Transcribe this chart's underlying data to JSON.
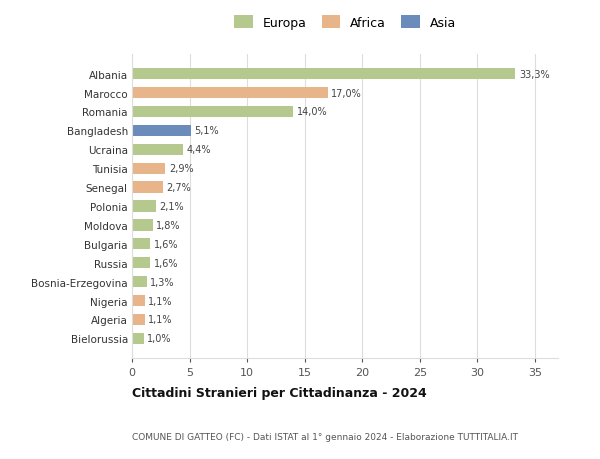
{
  "countries": [
    "Albania",
    "Marocco",
    "Romania",
    "Bangladesh",
    "Ucraina",
    "Tunisia",
    "Senegal",
    "Polonia",
    "Moldova",
    "Bulgaria",
    "Russia",
    "Bosnia-Erzegovina",
    "Nigeria",
    "Algeria",
    "Bielorussia"
  ],
  "values": [
    33.3,
    17.0,
    14.0,
    5.1,
    4.4,
    2.9,
    2.7,
    2.1,
    1.8,
    1.6,
    1.6,
    1.3,
    1.1,
    1.1,
    1.0
  ],
  "labels": [
    "33,3%",
    "17,0%",
    "14,0%",
    "5,1%",
    "4,4%",
    "2,9%",
    "2,7%",
    "2,1%",
    "1,8%",
    "1,6%",
    "1,6%",
    "1,3%",
    "1,1%",
    "1,1%",
    "1,0%"
  ],
  "colors": [
    "#b5c98e",
    "#e8b48a",
    "#b5c98e",
    "#6b8cba",
    "#b5c98e",
    "#e8b48a",
    "#e8b48a",
    "#b5c98e",
    "#b5c98e",
    "#b5c98e",
    "#b5c98e",
    "#b5c98e",
    "#e8b48a",
    "#e8b48a",
    "#b5c98e"
  ],
  "legend_labels": [
    "Europa",
    "Africa",
    "Asia"
  ],
  "legend_colors": [
    "#b5c98e",
    "#e8b48a",
    "#6b8cba"
  ],
  "title1": "Cittadini Stranieri per Cittadinanza - 2024",
  "title2": "COMUNE DI GATTEO (FC) - Dati ISTAT al 1° gennaio 2024 - Elaborazione TUTTITALIA.IT",
  "xlim": [
    0,
    37
  ],
  "xticks": [
    0,
    5,
    10,
    15,
    20,
    25,
    30,
    35
  ],
  "background_color": "#ffffff",
  "grid_color": "#dddddd"
}
